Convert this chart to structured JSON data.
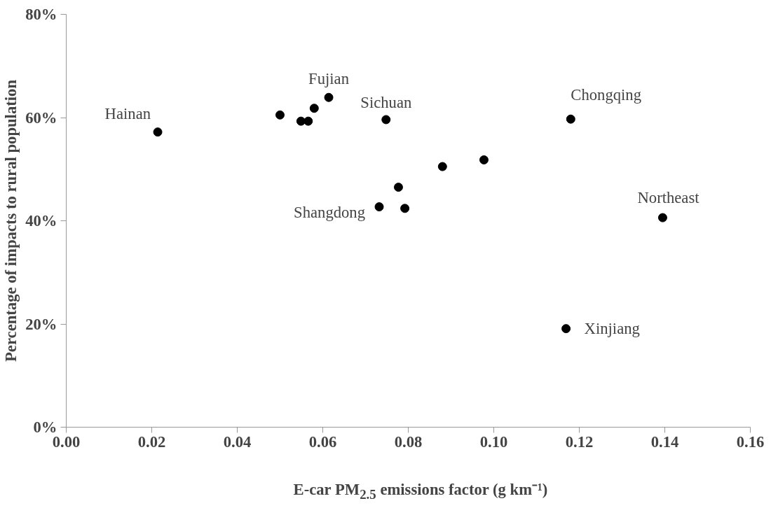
{
  "chart_data": {
    "type": "scatter",
    "xlabel": "E-car PM$_{2.5}$ emissions factor (g km⁻¹)",
    "ylabel": "Percentage of impacts to rural population",
    "x": [
      0.0214,
      0.05,
      0.0549,
      0.0566,
      0.058,
      0.0614,
      0.0748,
      0.118,
      0.0977,
      0.088,
      0.0777,
      0.0732,
      0.0792,
      0.1395,
      0.1169
    ],
    "values": [
      57.2,
      60.5,
      59.3,
      59.3,
      61.8,
      63.9,
      59.6,
      59.7,
      51.8,
      50.5,
      46.5,
      42.7,
      42.4,
      40.6,
      19.1
    ],
    "color": "#000000",
    "marker": "circle",
    "grid": false,
    "legend": false,
    "xlim": [
      0,
      0.16
    ],
    "xticks": [
      {
        "value": 0,
        "label": "0.00"
      },
      {
        "value": 0.02,
        "label": "0.02"
      },
      {
        "value": 0.04,
        "label": "0.04"
      },
      {
        "value": 0.06,
        "label": "0.06"
      },
      {
        "value": 0.08,
        "label": "0.08"
      },
      {
        "value": 0.1,
        "label": "0.10"
      },
      {
        "value": 0.12,
        "label": "0.12"
      },
      {
        "value": 0.14,
        "label": "0.14"
      },
      {
        "value": 0.16,
        "label": "0.16"
      }
    ],
    "ylim": [
      0,
      80
    ],
    "yticks": [
      {
        "value": 0,
        "label": "0%"
      },
      {
        "value": 20,
        "label": "20%"
      },
      {
        "value": 40,
        "label": "40%"
      },
      {
        "value": 60,
        "label": "60%"
      },
      {
        "value": 80,
        "label": "80%"
      }
    ],
    "annotations": [
      {
        "text": "Hainan",
        "x": 0.0214,
        "y": 57.2
      },
      {
        "text": "Fujian",
        "x": 0.0614,
        "y": 63.9
      },
      {
        "text": "Sichuan",
        "x": 0.0748,
        "y": 59.6
      },
      {
        "text": "Chongqing",
        "x": 0.118,
        "y": 59.7
      },
      {
        "text": "Northeast",
        "x": 0.1395,
        "y": 40.6
      },
      {
        "text": "Xinjiang",
        "x": 0.1169,
        "y": 19.1
      },
      {
        "text": "Shangdong",
        "x": 0.0732,
        "y": 42.7
      }
    ]
  }
}
